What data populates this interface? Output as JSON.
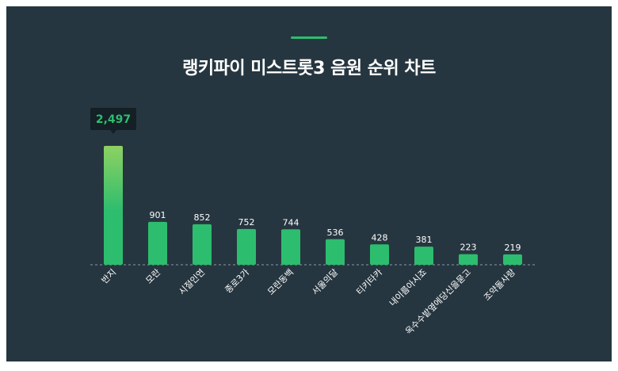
{
  "chart_data": {
    "type": "bar",
    "title": "랭키파이 미스트롯3 음원 순위 차트",
    "categories": [
      "반지",
      "모란",
      "시절인연",
      "종로3가",
      "모란동백",
      "서울의달",
      "티키타카",
      "내이름아시죠",
      "옥수수밭옆에당신을묻고",
      "조약돌사랑"
    ],
    "values": [
      2497,
      901,
      852,
      752,
      744,
      536,
      428,
      381,
      223,
      219
    ],
    "value_labels": [
      "2,497",
      "901",
      "852",
      "752",
      "744",
      "536",
      "428",
      "381",
      "223",
      "219"
    ],
    "highlight": {
      "index": 0,
      "label": "2,497"
    },
    "ylim": [
      0,
      2497
    ],
    "grid": false,
    "colors": {
      "bar": "#2dbd6e",
      "bar_top_highlight": "#8ed162",
      "background": "#263640",
      "tooltip_bg": "#141f26",
      "accent": "#2dbd6e"
    }
  }
}
